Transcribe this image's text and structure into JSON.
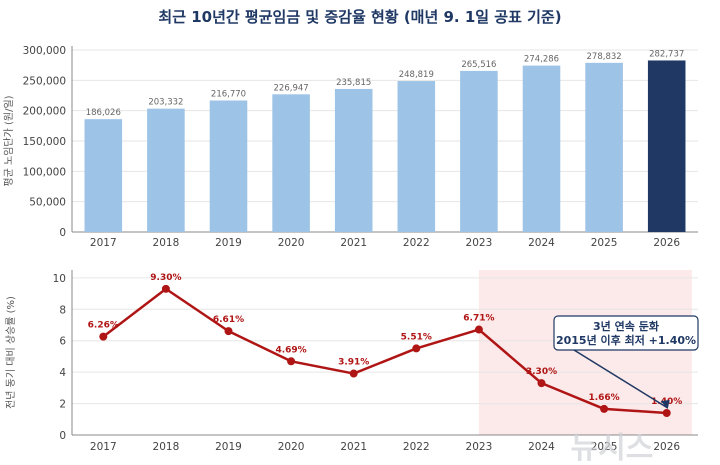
{
  "title": "최근 10년간 평균임금 및 증감율 현황 (매년 9. 1일 공표 기준)",
  "watermark": "뉴시스",
  "colors": {
    "bar": "#9dc3e6",
    "bar_highlight": "#1f3864",
    "line": "#b01515",
    "shade": "#fbe5e5",
    "annotation_border": "#1f3864"
  },
  "chart_data": [
    {
      "type": "bar",
      "categories": [
        "2017",
        "2018",
        "2019",
        "2020",
        "2021",
        "2022",
        "2023",
        "2024",
        "2025",
        "2026"
      ],
      "values": [
        186026,
        203332,
        216770,
        226947,
        235815,
        248819,
        265516,
        274286,
        278832,
        282737
      ],
      "value_labels": [
        "186,026",
        "203,332",
        "216,770",
        "226,947",
        "235,815",
        "248,819",
        "265,516",
        "274,286",
        "278,832",
        "282,737"
      ],
      "highlight_category": "2026",
      "ylabel": "평균 노임단가 (원/일)",
      "ylim": [
        0,
        300000
      ],
      "yticks": [
        0,
        50000,
        100000,
        150000,
        200000,
        250000,
        300000
      ],
      "ytick_labels": [
        "0",
        "50,000",
        "100,000",
        "150,000",
        "200,000",
        "250,000",
        "300,000"
      ],
      "grid": true
    },
    {
      "type": "line",
      "categories": [
        "2017",
        "2018",
        "2019",
        "2020",
        "2021",
        "2022",
        "2023",
        "2024",
        "2025",
        "2026"
      ],
      "values": [
        6.26,
        9.3,
        6.61,
        4.69,
        3.91,
        5.51,
        6.71,
        3.3,
        1.66,
        1.4
      ],
      "value_labels": [
        "6.26%",
        "9.30%",
        "6.61%",
        "4.69%",
        "3.91%",
        "5.51%",
        "6.71%",
        "3.30%",
        "1.66%",
        "1.40%"
      ],
      "ylabel": "전년 동기 대비 상승률 (%)",
      "ylim": [
        0,
        10.5
      ],
      "yticks": [
        0,
        2,
        4,
        6,
        8,
        10
      ],
      "ytick_labels": [
        "0",
        "2",
        "4",
        "6",
        "8",
        "10"
      ],
      "shaded_range": [
        "2023",
        "2026"
      ],
      "grid": true,
      "annotation": {
        "line1": "3년 연속 둔화",
        "line2": "2015년 이후 최저 +1.40%",
        "target_category": "2026"
      }
    }
  ]
}
